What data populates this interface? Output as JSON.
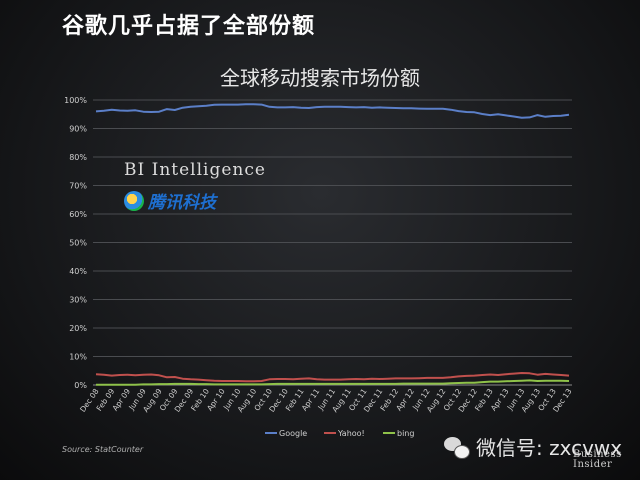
{
  "headline": "谷歌几乎占据了全部份额",
  "branding": {
    "bi_intelligence": "BI Intelligence",
    "tencent": "腾讯科技",
    "source": "Source: StatCounter",
    "wechat": "微信号: zxcvwx",
    "business_insider_line1": "Business",
    "business_insider_line2": "Insider"
  },
  "colors": {
    "google": "#5b7fc8",
    "yahoo": "#c0504d",
    "bing": "#8fc24a",
    "grid": "#4a4c50",
    "axis_text": "#cfcfcf"
  },
  "chart_data": {
    "type": "line",
    "title": "全球移动搜索市场份额",
    "xlabel": "",
    "ylabel": "",
    "ylim": [
      0,
      100
    ],
    "yticks": [
      "0%",
      "10%",
      "20%",
      "30%",
      "40%",
      "50%",
      "60%",
      "70%",
      "80%",
      "90%",
      "100%"
    ],
    "grid": true,
    "legend": "bottom",
    "x": [
      "Dec 08",
      "Jan 09",
      "Feb 09",
      "Mar 09",
      "Apr 09",
      "May 09",
      "Jun 09",
      "Jul 09",
      "Aug 09",
      "Sep 09",
      "Oct 09",
      "Nov 09",
      "Dec 09",
      "Jan 10",
      "Feb 10",
      "Mar 10",
      "Apr 10",
      "May 10",
      "Jun 10",
      "Jul 10",
      "Aug 10",
      "Sep 10",
      "Oct 10",
      "Nov 10",
      "Dec 10",
      "Jan 11",
      "Feb 11",
      "Mar 11",
      "Apr 11",
      "May 11",
      "Jun 11",
      "Jul 11",
      "Aug 11",
      "Sep 11",
      "Oct 11",
      "Nov 11",
      "Dec 11",
      "Jan 12",
      "Feb 12",
      "Mar 12",
      "Apr 12",
      "May 12",
      "Jun 12",
      "Jul 12",
      "Aug 12",
      "Sep 12",
      "Oct 12",
      "Nov 12",
      "Dec 12",
      "Jan 13",
      "Feb 13",
      "Mar 13",
      "Apr 13",
      "May 13",
      "Jun 13",
      "Jul 13",
      "Aug 13",
      "Sep 13",
      "Oct 13",
      "Nov 13",
      "Dec 13"
    ],
    "xticks": [
      "Dec 08",
      "Feb 09",
      "Apr 09",
      "Jun 09",
      "Aug 09",
      "Oct 09",
      "Dec 09",
      "Feb 10",
      "Apr 10",
      "Jun 10",
      "Aug 10",
      "Oct 10",
      "Dec 10",
      "Feb 11",
      "Apr 11",
      "Jun 11",
      "Aug 11",
      "Oct 11",
      "Dec 11",
      "Feb 12",
      "Apr 12",
      "Jun 12",
      "Aug 12",
      "Oct 12",
      "Dec 12",
      "Feb 13",
      "Apr 13",
      "Jun 13",
      "Aug 13",
      "Oct 13",
      "Dec 13"
    ],
    "series": [
      {
        "name": "Google",
        "values": [
          96.0,
          96.2,
          96.6,
          96.3,
          96.2,
          96.4,
          95.9,
          95.8,
          95.9,
          96.8,
          96.5,
          97.3,
          97.6,
          97.8,
          98.0,
          98.3,
          98.4,
          98.4,
          98.4,
          98.5,
          98.5,
          98.4,
          97.6,
          97.4,
          97.4,
          97.5,
          97.3,
          97.2,
          97.5,
          97.6,
          97.6,
          97.6,
          97.5,
          97.4,
          97.5,
          97.3,
          97.4,
          97.3,
          97.2,
          97.1,
          97.1,
          97.0,
          96.9,
          96.9,
          96.9,
          96.6,
          96.1,
          95.8,
          95.7,
          95.1,
          94.7,
          95.0,
          94.6,
          94.2,
          93.8,
          93.9,
          94.7,
          94.1,
          94.4,
          94.5,
          94.8
        ]
      },
      {
        "name": "Yahoo!",
        "values": [
          3.8,
          3.6,
          3.3,
          3.5,
          3.6,
          3.4,
          3.6,
          3.7,
          3.4,
          2.7,
          2.8,
          2.2,
          2.0,
          1.9,
          1.7,
          1.5,
          1.4,
          1.4,
          1.4,
          1.3,
          1.3,
          1.4,
          2.0,
          2.1,
          2.1,
          2.0,
          2.2,
          2.3,
          2.0,
          1.9,
          1.9,
          1.9,
          2.0,
          2.1,
          2.0,
          2.2,
          2.1,
          2.2,
          2.3,
          2.3,
          2.3,
          2.4,
          2.5,
          2.5,
          2.5,
          2.7,
          3.0,
          3.2,
          3.3,
          3.5,
          3.7,
          3.5,
          3.8,
          4.0,
          4.2,
          4.1,
          3.6,
          3.9,
          3.7,
          3.5,
          3.3
        ]
      },
      {
        "name": "bing",
        "values": [
          0.1,
          0.1,
          0.1,
          0.1,
          0.1,
          0.1,
          0.2,
          0.2,
          0.3,
          0.3,
          0.4,
          0.4,
          0.4,
          0.3,
          0.3,
          0.2,
          0.2,
          0.2,
          0.2,
          0.2,
          0.2,
          0.2,
          0.3,
          0.4,
          0.4,
          0.4,
          0.4,
          0.4,
          0.4,
          0.4,
          0.4,
          0.4,
          0.4,
          0.4,
          0.4,
          0.4,
          0.4,
          0.4,
          0.4,
          0.5,
          0.5,
          0.5,
          0.5,
          0.5,
          0.5,
          0.6,
          0.7,
          0.8,
          0.8,
          1.0,
          1.2,
          1.2,
          1.3,
          1.4,
          1.5,
          1.6,
          1.4,
          1.5,
          1.5,
          1.5,
          1.4
        ]
      }
    ]
  }
}
